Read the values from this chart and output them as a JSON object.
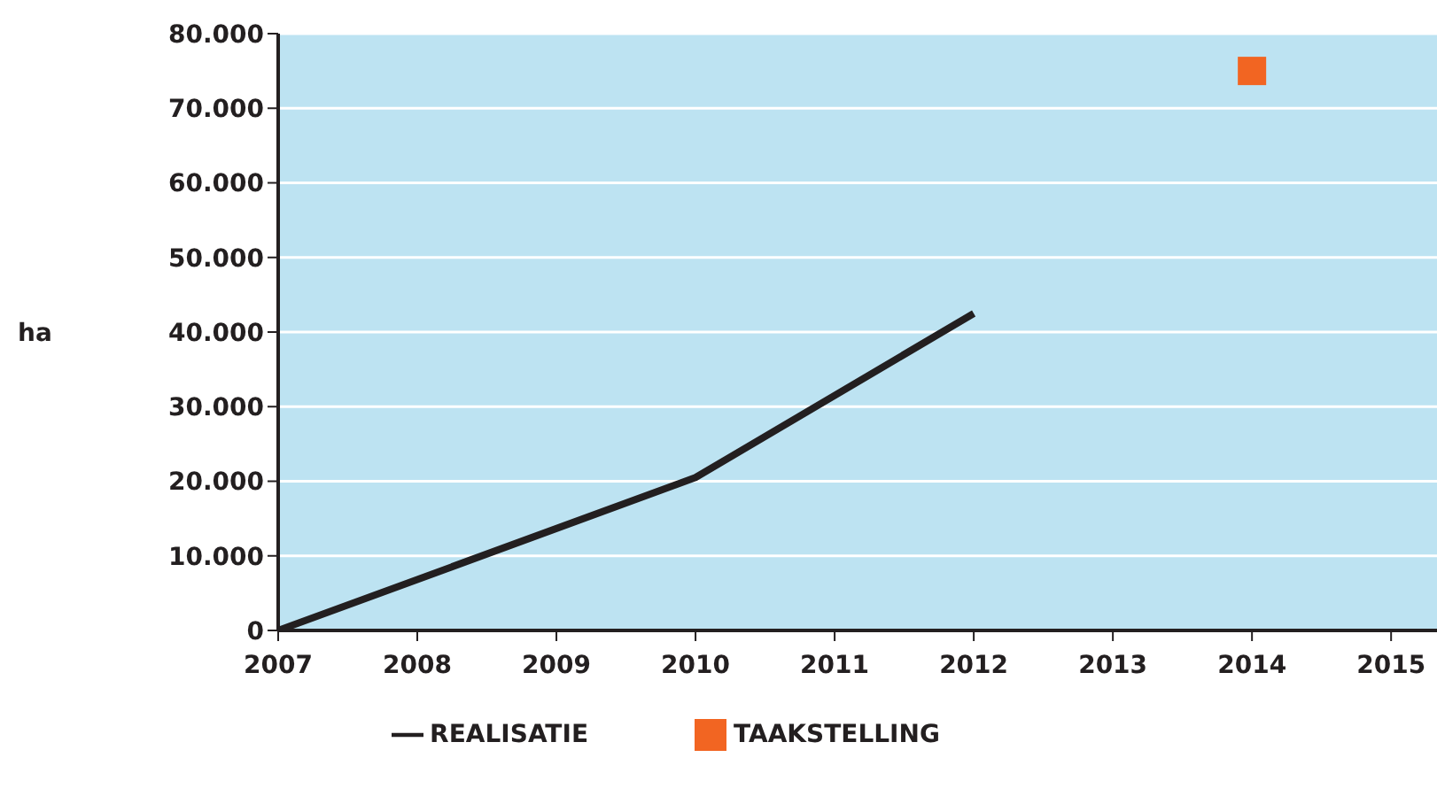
{
  "chart_data": {
    "type": "line",
    "ylabel": "ha",
    "xlim": [
      2007,
      2015.33
    ],
    "xticks": [
      2007,
      2008,
      2009,
      2010,
      2011,
      2012,
      2013,
      2014,
      2015
    ],
    "ylim": [
      0,
      80000
    ],
    "yticks": [
      {
        "value": 0,
        "label": "0"
      },
      {
        "value": 10000,
        "label": "10.000"
      },
      {
        "value": 20000,
        "label": "20.000"
      },
      {
        "value": 30000,
        "label": "30.000"
      },
      {
        "value": 40000,
        "label": "40.000"
      },
      {
        "value": 50000,
        "label": "50.000"
      },
      {
        "value": 60000,
        "label": "60.000"
      },
      {
        "value": 70000,
        "label": "70.000"
      },
      {
        "value": 80000,
        "label": "80.000"
      }
    ],
    "series": [
      {
        "name": "REALISATIE",
        "color": "#231f20",
        "marker": "none",
        "x": [
          2007,
          2010,
          2012
        ],
        "values": [
          0,
          20500,
          42500
        ]
      },
      {
        "name": "TAAKSTELLING",
        "type": "scatter",
        "color": "#f26522",
        "marker": "square",
        "x": [
          2014
        ],
        "values": [
          75000
        ]
      }
    ],
    "grid": "y",
    "legend": "bottom"
  }
}
